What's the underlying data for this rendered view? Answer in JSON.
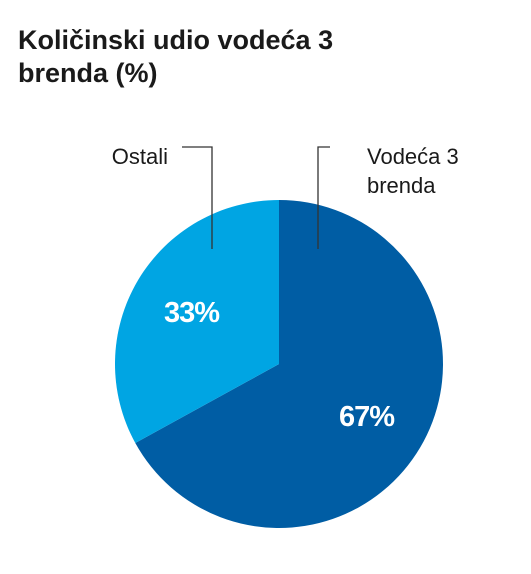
{
  "chart_data": {
    "type": "pie",
    "title": "Količinski udio vodeća 3 brenda (%)",
    "slices": [
      {
        "name": "Vodeća 3 brenda",
        "label_lines": [
          "Vodeća 3",
          "brenda"
        ],
        "value": 67,
        "display": "67%",
        "color": "#005da4"
      },
      {
        "name": "Ostali",
        "label_lines": [
          "Ostali"
        ],
        "value": 33,
        "display": "33%",
        "color": "#00a5e3"
      }
    ],
    "unit": "%",
    "legend": "callouts-top"
  }
}
